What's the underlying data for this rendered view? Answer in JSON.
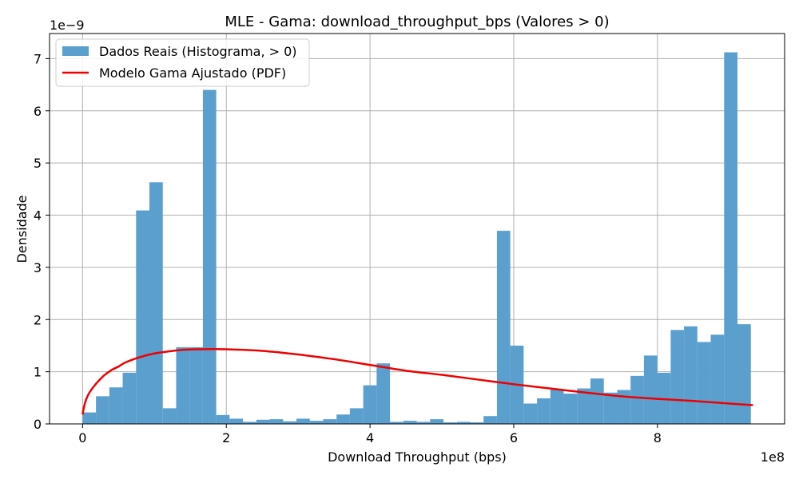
{
  "chart_data": {
    "type": "bar",
    "title": "MLE - Gama: download_throughput_bps (Valores > 0)",
    "xlabel": "Download Throughput (bps)",
    "ylabel": "Densidade",
    "x_offset_label": "1e8",
    "y_offset_label": "1e−9",
    "xlim": [
      -46000000.0,
      977000000.0
    ],
    "ylim": [
      0,
      7.48e-09
    ],
    "x_ticks": [
      0,
      200000000.0,
      400000000.0,
      600000000.0,
      800000000.0
    ],
    "x_tick_labels": [
      "0",
      "2",
      "4",
      "6",
      "8"
    ],
    "y_ticks": [
      0,
      1e-09,
      2e-09,
      3e-09,
      4e-09,
      5e-09,
      6e-09,
      7e-09
    ],
    "y_tick_labels": [
      "0",
      "1",
      "2",
      "3",
      "4",
      "5",
      "6",
      "7"
    ],
    "grid": true,
    "legend_position": "top-left",
    "legend": {
      "histogram_label": "Dados Reais (Histograma, > 0)",
      "curve_label": "Modelo Gama Ajustado (PDF)"
    },
    "colors": {
      "histogram": "#5b9fcf",
      "curve": "#ee0000",
      "grid": "#b0b0b0"
    },
    "histogram": {
      "bin_start": 0,
      "bin_width": 18600000.0,
      "densities": [
        2.2e-10,
        5.3e-10,
        7e-10,
        9.8e-10,
        4.09e-09,
        4.63e-09,
        3e-10,
        1.47e-09,
        1.47e-09,
        6.4e-09,
        1.7e-10,
        1e-10,
        4e-11,
        8e-11,
        9e-11,
        5e-11,
        1e-10,
        6e-11,
        9e-11,
        1.8e-10,
        3e-10,
        7.4e-10,
        1.16e-09,
        4e-11,
        6e-11,
        4e-11,
        9e-11,
        3e-11,
        4e-11,
        3e-11,
        1.5e-10,
        3.7e-09,
        1.5e-09,
        3.9e-10,
        4.9e-10,
        6.6e-10,
        5.8e-10,
        6.8e-10,
        8.7e-10,
        6e-10,
        6.5e-10,
        9.2e-10,
        1.31e-09,
        9.8e-10,
        1.8e-09,
        1.87e-09,
        1.57e-09,
        1.71e-09,
        7.12e-09,
        1.91e-09
      ]
    },
    "series": [
      {
        "name": "Modelo Gama Ajustado (PDF)",
        "type": "line",
        "x": [
          0,
          2000000.0,
          5000000.0,
          10000000.0,
          20000000.0,
          30000000.0,
          40000000.0,
          50000000.0,
          60000000.0,
          80000000.0,
          100000000.0,
          120000000.0,
          140000000.0,
          160000000.0,
          180000000.0,
          200000000.0,
          250000000.0,
          300000000.0,
          350000000.0,
          400000000.0,
          450000000.0,
          500000000.0,
          550000000.0,
          600000000.0,
          650000000.0,
          700000000.0,
          750000000.0,
          800000000.0,
          850000000.0,
          900000000.0,
          933000000.0
        ],
        "y": [
          1.8e-10,
          3.3e-10,
          4.7e-10,
          6.1e-10,
          7.9e-10,
          9.3e-10,
          1.03e-09,
          1.1e-09,
          1.18e-09,
          1.28e-09,
          1.35e-09,
          1.39e-09,
          1.42e-09,
          1.43e-09,
          1.435e-09,
          1.43e-09,
          1.4e-09,
          1.33e-09,
          1.24e-09,
          1.13e-09,
          1.02e-09,
          9.4e-10,
          8.5e-10,
          7.6e-10,
          6.8e-10,
          6e-10,
          5.3e-10,
          4.8e-10,
          4.4e-10,
          3.9e-10,
          3.6e-10
        ]
      }
    ]
  }
}
